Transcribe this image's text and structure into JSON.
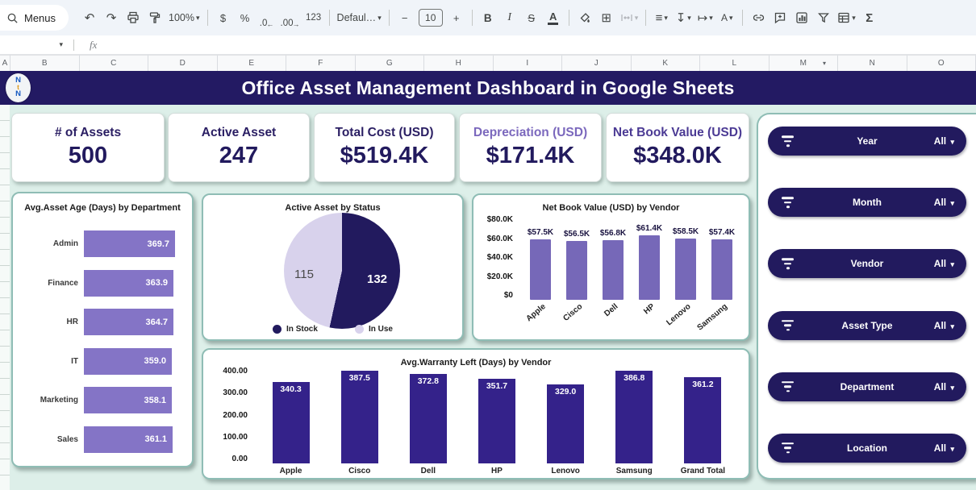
{
  "toolbar": {
    "menus_label": "Menus",
    "zoom_value": "100%",
    "currency": "$",
    "percent": "%",
    "decrease_decimal": ".0",
    "increase_decimal": ".00",
    "more_formats": "123",
    "font_name": "Defaul…",
    "font_size": "10",
    "minus": "−",
    "plus": "+",
    "bold": "B",
    "italic": "I",
    "strikethrough": "S",
    "text_color": "A",
    "text_rotation": "A",
    "functions": "Σ"
  },
  "formula_bar": {
    "fx_label": "fx",
    "name_box_value": ""
  },
  "spreadsheet": {
    "columns": [
      "A",
      "B",
      "C",
      "D",
      "E",
      "F",
      "G",
      "H",
      "I",
      "J",
      "K",
      "L",
      "M",
      "N",
      "O"
    ],
    "dropdown_column": "M"
  },
  "header": {
    "title": "Office Asset Management Dashboard in Google Sheets",
    "logo_letters": [
      "N",
      "t",
      "N"
    ]
  },
  "kpis": [
    {
      "label": "# of Assets",
      "value": "500",
      "label_color": "#2a1e63"
    },
    {
      "label": "Active Asset",
      "value": "247",
      "label_color": "#2a1e63"
    },
    {
      "label": "Total Cost (USD)",
      "value": "$519.4K",
      "label_color": "#2a1e63"
    },
    {
      "label": "Depreciation (USD)",
      "value": "$171.4K",
      "label_color": "#7b68bd"
    },
    {
      "label": "Net Book Value (USD)",
      "value": "$348.0K",
      "label_color": "#4b3a94"
    }
  ],
  "chart_data": [
    {
      "type": "bar",
      "orientation": "horizontal",
      "title": "Avg.Asset Age (Days) by Department",
      "categories": [
        "Admin",
        "Finance",
        "HR",
        "IT",
        "Marketing",
        "Sales"
      ],
      "values": [
        369.7,
        363.9,
        364.7,
        359.0,
        358.1,
        361.1
      ],
      "xlim": [
        0,
        400
      ],
      "bar_color": "#8474c6",
      "value_labels_inside": true
    },
    {
      "type": "pie",
      "title": "Active Asset by Status",
      "labels": [
        "In Stock",
        "In Use"
      ],
      "values": [
        132,
        115
      ],
      "colors": [
        "#221a5e",
        "#d8d2ec"
      ],
      "legend_position": "bottom"
    },
    {
      "type": "bar",
      "title": "Net Book Value (USD) by Vendor",
      "categories": [
        "Apple",
        "Cisco",
        "Dell",
        "HP",
        "Lenovo",
        "Samsung"
      ],
      "values": [
        57500,
        56500,
        56800,
        61400,
        58500,
        57400
      ],
      "value_labels": [
        "$57.5K",
        "$56.5K",
        "$56.8K",
        "$61.4K",
        "$58.5K",
        "$57.4K"
      ],
      "ylim": [
        0,
        80000
      ],
      "yticks": [
        "$80.0K",
        "$60.0K",
        "$40.0K",
        "$20.0K",
        "$0"
      ],
      "bar_color": "#7668b8"
    },
    {
      "type": "bar",
      "title": "Avg.Warranty Left (Days) by Vendor",
      "categories": [
        "Apple",
        "Cisco",
        "Dell",
        "HP",
        "Lenovo",
        "Samsung",
        "Grand Total"
      ],
      "values": [
        340.3,
        387.5,
        372.8,
        351.7,
        329.0,
        386.8,
        361.2
      ],
      "ylim": [
        0,
        400
      ],
      "yticks": [
        "400.00",
        "300.00",
        "200.00",
        "100.00",
        "0.00"
      ],
      "bar_color": "#34228a"
    }
  ],
  "filters": [
    {
      "label": "Year",
      "value": "All"
    },
    {
      "label": "Month",
      "value": "All"
    },
    {
      "label": "Vendor",
      "value": "All"
    },
    {
      "label": "Asset Type",
      "value": "All"
    },
    {
      "label": "Department",
      "value": "All"
    },
    {
      "label": "Location",
      "value": "All"
    }
  ],
  "icons": {
    "dropdown": "▾",
    "undo": "↶",
    "redo": "↷",
    "borders": "⊞",
    "horizontal_align": "≡",
    "vertical_align": "↧",
    "text_wrap": "↦"
  },
  "colors": {
    "banner": "#231a63",
    "dashboard_bg": "#ddefe9",
    "card_border": "#8fbdb5",
    "filter_pill": "#221a5e",
    "kpi_value": "#221a5e"
  }
}
